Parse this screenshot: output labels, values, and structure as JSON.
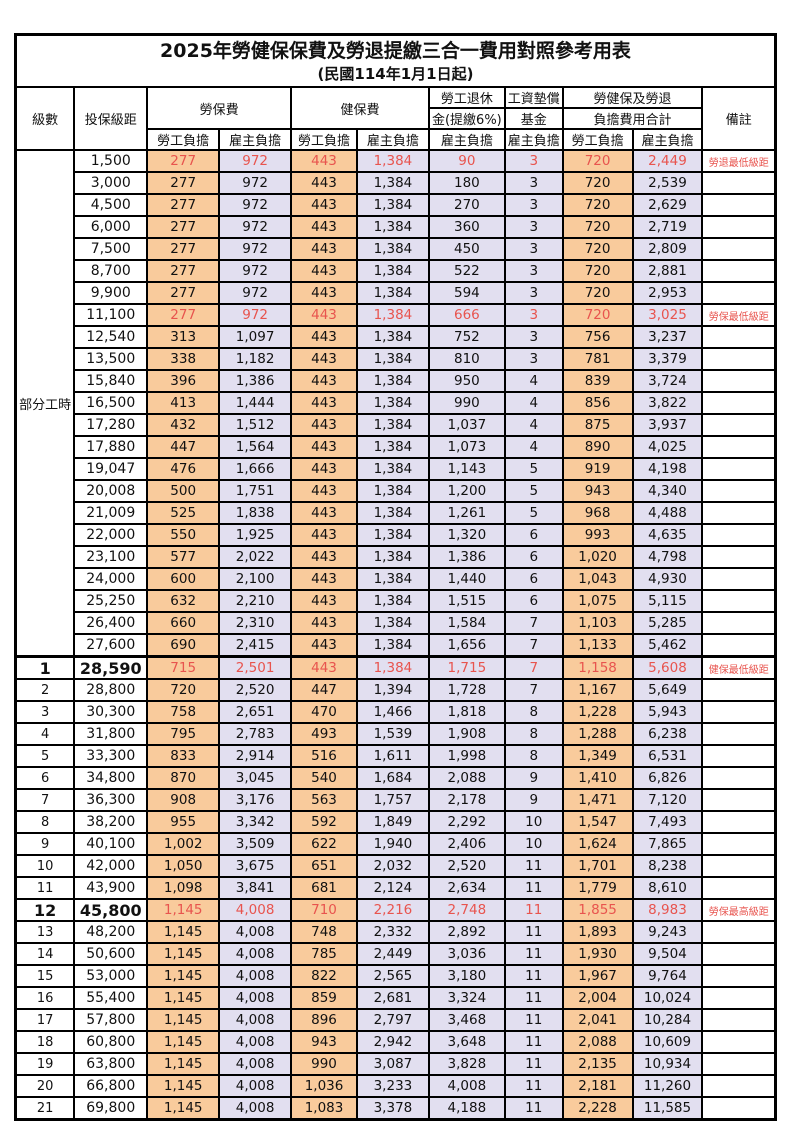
{
  "title": "2025年勞健保保費及勞退提繳三合一費用對照參考用表",
  "subtitle": "(民國114年1月1日起)",
  "header": {
    "level": "級數",
    "bracket": "投保級距",
    "labor_ins": "勞保費",
    "health_ins": "健保費",
    "pension_line1": "勞工退休",
    "pension_line2": "金(提繳6%)",
    "wage_fund_line1": "工資墊償",
    "wage_fund_line2": "基金",
    "total_line1": "勞健保及勞退",
    "total_line2": "負擔費用合計",
    "remark": "備註",
    "employee": "勞工負擔",
    "employer": "雇主負擔"
  },
  "part_time_label": "部分工時",
  "part_time_rowspan": 23,
  "colors": {
    "employee_bg": "#f9cb9c",
    "employer_bg": "#e2dff0",
    "highlight_text": "#e8544e",
    "border": "#000000"
  },
  "rows": [
    {
      "level": "",
      "bracket": "1,500",
      "labor_emp": "277",
      "labor_er": "972",
      "health_emp": "443",
      "health_er": "1,384",
      "pension_er": "90",
      "fund_er": "3",
      "total_emp": "720",
      "total_er": "2,449",
      "remark": "勞退最低級距",
      "hl": true,
      "emph": false
    },
    {
      "level": "",
      "bracket": "3,000",
      "labor_emp": "277",
      "labor_er": "972",
      "health_emp": "443",
      "health_er": "1,384",
      "pension_er": "180",
      "fund_er": "3",
      "total_emp": "720",
      "total_er": "2,539",
      "remark": "",
      "hl": false,
      "emph": false
    },
    {
      "level": "",
      "bracket": "4,500",
      "labor_emp": "277",
      "labor_er": "972",
      "health_emp": "443",
      "health_er": "1,384",
      "pension_er": "270",
      "fund_er": "3",
      "total_emp": "720",
      "total_er": "2,629",
      "remark": "",
      "hl": false,
      "emph": false
    },
    {
      "level": "",
      "bracket": "6,000",
      "labor_emp": "277",
      "labor_er": "972",
      "health_emp": "443",
      "health_er": "1,384",
      "pension_er": "360",
      "fund_er": "3",
      "total_emp": "720",
      "total_er": "2,719",
      "remark": "",
      "hl": false,
      "emph": false
    },
    {
      "level": "",
      "bracket": "7,500",
      "labor_emp": "277",
      "labor_er": "972",
      "health_emp": "443",
      "health_er": "1,384",
      "pension_er": "450",
      "fund_er": "3",
      "total_emp": "720",
      "total_er": "2,809",
      "remark": "",
      "hl": false,
      "emph": false
    },
    {
      "level": "",
      "bracket": "8,700",
      "labor_emp": "277",
      "labor_er": "972",
      "health_emp": "443",
      "health_er": "1,384",
      "pension_er": "522",
      "fund_er": "3",
      "total_emp": "720",
      "total_er": "2,881",
      "remark": "",
      "hl": false,
      "emph": false
    },
    {
      "level": "",
      "bracket": "9,900",
      "labor_emp": "277",
      "labor_er": "972",
      "health_emp": "443",
      "health_er": "1,384",
      "pension_er": "594",
      "fund_er": "3",
      "total_emp": "720",
      "total_er": "2,953",
      "remark": "",
      "hl": false,
      "emph": false
    },
    {
      "level": "",
      "bracket": "11,100",
      "labor_emp": "277",
      "labor_er": "972",
      "health_emp": "443",
      "health_er": "1,384",
      "pension_er": "666",
      "fund_er": "3",
      "total_emp": "720",
      "total_er": "3,025",
      "remark": "勞保最低級距",
      "hl": true,
      "emph": false
    },
    {
      "level": "",
      "bracket": "12,540",
      "labor_emp": "313",
      "labor_er": "1,097",
      "health_emp": "443",
      "health_er": "1,384",
      "pension_er": "752",
      "fund_er": "3",
      "total_emp": "756",
      "total_er": "3,237",
      "remark": "",
      "hl": false,
      "emph": false
    },
    {
      "level": "",
      "bracket": "13,500",
      "labor_emp": "338",
      "labor_er": "1,182",
      "health_emp": "443",
      "health_er": "1,384",
      "pension_er": "810",
      "fund_er": "3",
      "total_emp": "781",
      "total_er": "3,379",
      "remark": "",
      "hl": false,
      "emph": false
    },
    {
      "level": "",
      "bracket": "15,840",
      "labor_emp": "396",
      "labor_er": "1,386",
      "health_emp": "443",
      "health_er": "1,384",
      "pension_er": "950",
      "fund_er": "4",
      "total_emp": "839",
      "total_er": "3,724",
      "remark": "",
      "hl": false,
      "emph": false
    },
    {
      "level": "",
      "bracket": "16,500",
      "labor_emp": "413",
      "labor_er": "1,444",
      "health_emp": "443",
      "health_er": "1,384",
      "pension_er": "990",
      "fund_er": "4",
      "total_emp": "856",
      "total_er": "3,822",
      "remark": "",
      "hl": false,
      "emph": false
    },
    {
      "level": "",
      "bracket": "17,280",
      "labor_emp": "432",
      "labor_er": "1,512",
      "health_emp": "443",
      "health_er": "1,384",
      "pension_er": "1,037",
      "fund_er": "4",
      "total_emp": "875",
      "total_er": "3,937",
      "remark": "",
      "hl": false,
      "emph": false
    },
    {
      "level": "",
      "bracket": "17,880",
      "labor_emp": "447",
      "labor_er": "1,564",
      "health_emp": "443",
      "health_er": "1,384",
      "pension_er": "1,073",
      "fund_er": "4",
      "total_emp": "890",
      "total_er": "4,025",
      "remark": "",
      "hl": false,
      "emph": false
    },
    {
      "level": "",
      "bracket": "19,047",
      "labor_emp": "476",
      "labor_er": "1,666",
      "health_emp": "443",
      "health_er": "1,384",
      "pension_er": "1,143",
      "fund_er": "5",
      "total_emp": "919",
      "total_er": "4,198",
      "remark": "",
      "hl": false,
      "emph": false
    },
    {
      "level": "",
      "bracket": "20,008",
      "labor_emp": "500",
      "labor_er": "1,751",
      "health_emp": "443",
      "health_er": "1,384",
      "pension_er": "1,200",
      "fund_er": "5",
      "total_emp": "943",
      "total_er": "4,340",
      "remark": "",
      "hl": false,
      "emph": false
    },
    {
      "level": "",
      "bracket": "21,009",
      "labor_emp": "525",
      "labor_er": "1,838",
      "health_emp": "443",
      "health_er": "1,384",
      "pension_er": "1,261",
      "fund_er": "5",
      "total_emp": "968",
      "total_er": "4,488",
      "remark": "",
      "hl": false,
      "emph": false
    },
    {
      "level": "",
      "bracket": "22,000",
      "labor_emp": "550",
      "labor_er": "1,925",
      "health_emp": "443",
      "health_er": "1,384",
      "pension_er": "1,320",
      "fund_er": "6",
      "total_emp": "993",
      "total_er": "4,635",
      "remark": "",
      "hl": false,
      "emph": false
    },
    {
      "level": "",
      "bracket": "23,100",
      "labor_emp": "577",
      "labor_er": "2,022",
      "health_emp": "443",
      "health_er": "1,384",
      "pension_er": "1,386",
      "fund_er": "6",
      "total_emp": "1,020",
      "total_er": "4,798",
      "remark": "",
      "hl": false,
      "emph": false
    },
    {
      "level": "",
      "bracket": "24,000",
      "labor_emp": "600",
      "labor_er": "2,100",
      "health_emp": "443",
      "health_er": "1,384",
      "pension_er": "1,440",
      "fund_er": "6",
      "total_emp": "1,043",
      "total_er": "4,930",
      "remark": "",
      "hl": false,
      "emph": false
    },
    {
      "level": "",
      "bracket": "25,250",
      "labor_emp": "632",
      "labor_er": "2,210",
      "health_emp": "443",
      "health_er": "1,384",
      "pension_er": "1,515",
      "fund_er": "6",
      "total_emp": "1,075",
      "total_er": "5,115",
      "remark": "",
      "hl": false,
      "emph": false
    },
    {
      "level": "",
      "bracket": "26,400",
      "labor_emp": "660",
      "labor_er": "2,310",
      "health_emp": "443",
      "health_er": "1,384",
      "pension_er": "1,584",
      "fund_er": "7",
      "total_emp": "1,103",
      "total_er": "5,285",
      "remark": "",
      "hl": false,
      "emph": false
    },
    {
      "level": "",
      "bracket": "27,600",
      "labor_emp": "690",
      "labor_er": "2,415",
      "health_emp": "443",
      "health_er": "1,384",
      "pension_er": "1,656",
      "fund_er": "7",
      "total_emp": "1,133",
      "total_er": "5,462",
      "remark": "",
      "hl": false,
      "emph": false
    },
    {
      "level": "1",
      "bracket": "28,590",
      "labor_emp": "715",
      "labor_er": "2,501",
      "health_emp": "443",
      "health_er": "1,384",
      "pension_er": "1,715",
      "fund_er": "7",
      "total_emp": "1,158",
      "total_er": "5,608",
      "remark": "健保最低級距",
      "hl": true,
      "emph": true
    },
    {
      "level": "2",
      "bracket": "28,800",
      "labor_emp": "720",
      "labor_er": "2,520",
      "health_emp": "447",
      "health_er": "1,394",
      "pension_er": "1,728",
      "fund_er": "7",
      "total_emp": "1,167",
      "total_er": "5,649",
      "remark": "",
      "hl": false,
      "emph": false
    },
    {
      "level": "3",
      "bracket": "30,300",
      "labor_emp": "758",
      "labor_er": "2,651",
      "health_emp": "470",
      "health_er": "1,466",
      "pension_er": "1,818",
      "fund_er": "8",
      "total_emp": "1,228",
      "total_er": "5,943",
      "remark": "",
      "hl": false,
      "emph": false
    },
    {
      "level": "4",
      "bracket": "31,800",
      "labor_emp": "795",
      "labor_er": "2,783",
      "health_emp": "493",
      "health_er": "1,539",
      "pension_er": "1,908",
      "fund_er": "8",
      "total_emp": "1,288",
      "total_er": "6,238",
      "remark": "",
      "hl": false,
      "emph": false
    },
    {
      "level": "5",
      "bracket": "33,300",
      "labor_emp": "833",
      "labor_er": "2,914",
      "health_emp": "516",
      "health_er": "1,611",
      "pension_er": "1,998",
      "fund_er": "8",
      "total_emp": "1,349",
      "total_er": "6,531",
      "remark": "",
      "hl": false,
      "emph": false
    },
    {
      "level": "6",
      "bracket": "34,800",
      "labor_emp": "870",
      "labor_er": "3,045",
      "health_emp": "540",
      "health_er": "1,684",
      "pension_er": "2,088",
      "fund_er": "9",
      "total_emp": "1,410",
      "total_er": "6,826",
      "remark": "",
      "hl": false,
      "emph": false
    },
    {
      "level": "7",
      "bracket": "36,300",
      "labor_emp": "908",
      "labor_er": "3,176",
      "health_emp": "563",
      "health_er": "1,757",
      "pension_er": "2,178",
      "fund_er": "9",
      "total_emp": "1,471",
      "total_er": "7,120",
      "remark": "",
      "hl": false,
      "emph": false
    },
    {
      "level": "8",
      "bracket": "38,200",
      "labor_emp": "955",
      "labor_er": "3,342",
      "health_emp": "592",
      "health_er": "1,849",
      "pension_er": "2,292",
      "fund_er": "10",
      "total_emp": "1,547",
      "total_er": "7,493",
      "remark": "",
      "hl": false,
      "emph": false
    },
    {
      "level": "9",
      "bracket": "40,100",
      "labor_emp": "1,002",
      "labor_er": "3,509",
      "health_emp": "622",
      "health_er": "1,940",
      "pension_er": "2,406",
      "fund_er": "10",
      "total_emp": "1,624",
      "total_er": "7,865",
      "remark": "",
      "hl": false,
      "emph": false
    },
    {
      "level": "10",
      "bracket": "42,000",
      "labor_emp": "1,050",
      "labor_er": "3,675",
      "health_emp": "651",
      "health_er": "2,032",
      "pension_er": "2,520",
      "fund_er": "11",
      "total_emp": "1,701",
      "total_er": "8,238",
      "remark": "",
      "hl": false,
      "emph": false
    },
    {
      "level": "11",
      "bracket": "43,900",
      "labor_emp": "1,098",
      "labor_er": "3,841",
      "health_emp": "681",
      "health_er": "2,124",
      "pension_er": "2,634",
      "fund_er": "11",
      "total_emp": "1,779",
      "total_er": "8,610",
      "remark": "",
      "hl": false,
      "emph": false
    },
    {
      "level": "12",
      "bracket": "45,800",
      "labor_emp": "1,145",
      "labor_er": "4,008",
      "health_emp": "710",
      "health_er": "2,216",
      "pension_er": "2,748",
      "fund_er": "11",
      "total_emp": "1,855",
      "total_er": "8,983",
      "remark": "勞保最高級距",
      "hl": true,
      "emph": true
    },
    {
      "level": "13",
      "bracket": "48,200",
      "labor_emp": "1,145",
      "labor_er": "4,008",
      "health_emp": "748",
      "health_er": "2,332",
      "pension_er": "2,892",
      "fund_er": "11",
      "total_emp": "1,893",
      "total_er": "9,243",
      "remark": "",
      "hl": false,
      "emph": false
    },
    {
      "level": "14",
      "bracket": "50,600",
      "labor_emp": "1,145",
      "labor_er": "4,008",
      "health_emp": "785",
      "health_er": "2,449",
      "pension_er": "3,036",
      "fund_er": "11",
      "total_emp": "1,930",
      "total_er": "9,504",
      "remark": "",
      "hl": false,
      "emph": false
    },
    {
      "level": "15",
      "bracket": "53,000",
      "labor_emp": "1,145",
      "labor_er": "4,008",
      "health_emp": "822",
      "health_er": "2,565",
      "pension_er": "3,180",
      "fund_er": "11",
      "total_emp": "1,967",
      "total_er": "9,764",
      "remark": "",
      "hl": false,
      "emph": false
    },
    {
      "level": "16",
      "bracket": "55,400",
      "labor_emp": "1,145",
      "labor_er": "4,008",
      "health_emp": "859",
      "health_er": "2,681",
      "pension_er": "3,324",
      "fund_er": "11",
      "total_emp": "2,004",
      "total_er": "10,024",
      "remark": "",
      "hl": false,
      "emph": false
    },
    {
      "level": "17",
      "bracket": "57,800",
      "labor_emp": "1,145",
      "labor_er": "4,008",
      "health_emp": "896",
      "health_er": "2,797",
      "pension_er": "3,468",
      "fund_er": "11",
      "total_emp": "2,041",
      "total_er": "10,284",
      "remark": "",
      "hl": false,
      "emph": false
    },
    {
      "level": "18",
      "bracket": "60,800",
      "labor_emp": "1,145",
      "labor_er": "4,008",
      "health_emp": "943",
      "health_er": "2,942",
      "pension_er": "3,648",
      "fund_er": "11",
      "total_emp": "2,088",
      "total_er": "10,609",
      "remark": "",
      "hl": false,
      "emph": false
    },
    {
      "level": "19",
      "bracket": "63,800",
      "labor_emp": "1,145",
      "labor_er": "4,008",
      "health_emp": "990",
      "health_er": "3,087",
      "pension_er": "3,828",
      "fund_er": "11",
      "total_emp": "2,135",
      "total_er": "10,934",
      "remark": "",
      "hl": false,
      "emph": false
    },
    {
      "level": "20",
      "bracket": "66,800",
      "labor_emp": "1,145",
      "labor_er": "4,008",
      "health_emp": "1,036",
      "health_er": "3,233",
      "pension_er": "4,008",
      "fund_er": "11",
      "total_emp": "2,181",
      "total_er": "11,260",
      "remark": "",
      "hl": false,
      "emph": false
    },
    {
      "level": "21",
      "bracket": "69,800",
      "labor_emp": "1,145",
      "labor_er": "4,008",
      "health_emp": "1,083",
      "health_er": "3,378",
      "pension_er": "4,188",
      "fund_er": "11",
      "total_emp": "2,228",
      "total_er": "11,585",
      "remark": "",
      "hl": false,
      "emph": false
    }
  ]
}
